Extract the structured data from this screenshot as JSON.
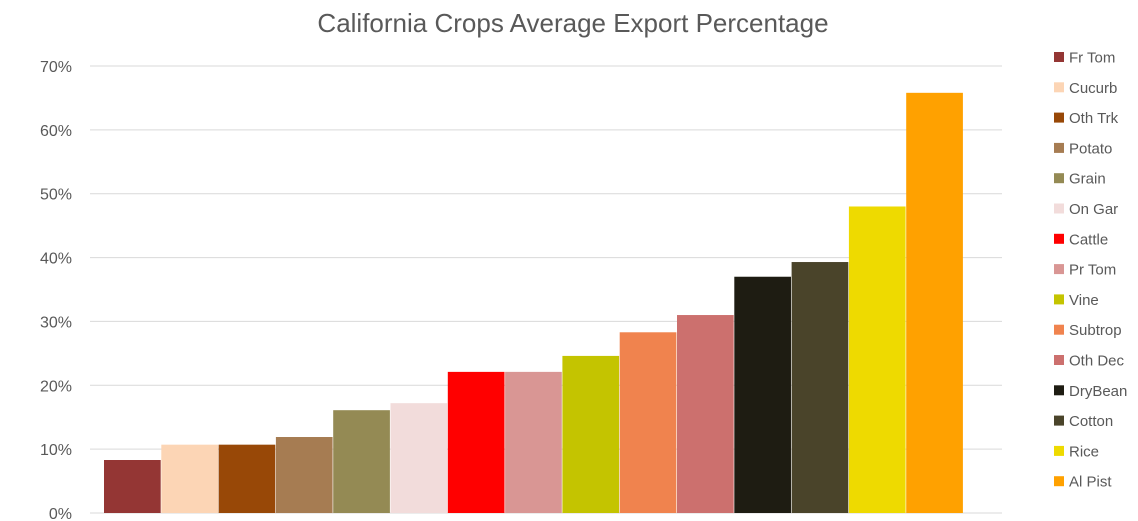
{
  "chart_data": {
    "type": "bar",
    "title": "California Crops Average Export Percentage",
    "xlabel": "",
    "ylabel": "",
    "ylim": [
      0,
      70
    ],
    "y_ticks": [
      0,
      10,
      20,
      30,
      40,
      50,
      60,
      70
    ],
    "y_tick_format": "percent",
    "grid": true,
    "legend_position": "right",
    "categories": [
      "Fr Tom",
      "Cucurb",
      "Oth Trk",
      "Potato",
      "Grain",
      "On Gar",
      "Cattle",
      "Pr Tom",
      "Vine",
      "Subtrop",
      "Oth Dec",
      "DryBean",
      "Cotton",
      "Rice",
      "Al Pist"
    ],
    "values": [
      8.3,
      10.7,
      10.7,
      11.9,
      16.1,
      17.2,
      22.1,
      22.1,
      24.6,
      28.3,
      31.0,
      37.0,
      39.3,
      48.0,
      65.8
    ],
    "colors": [
      "#943634",
      "#FCD5B5",
      "#984807",
      "#A67C52",
      "#948A54",
      "#F2DCDB",
      "#FF0000",
      "#D99694",
      "#C4C400",
      "#F0834E",
      "#CC706E",
      "#1E1C12",
      "#4A442A",
      "#EEDA00",
      "#FFA100"
    ]
  }
}
